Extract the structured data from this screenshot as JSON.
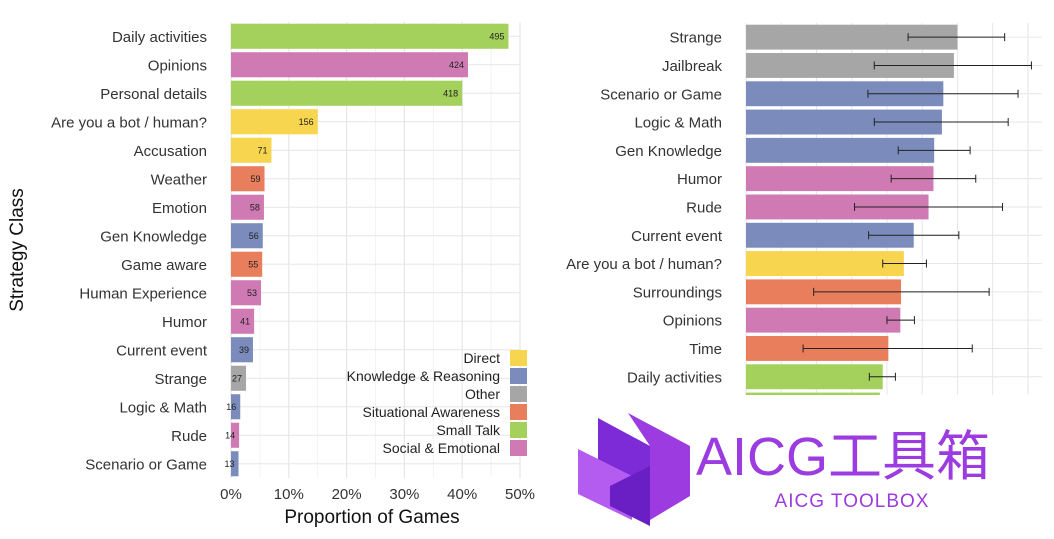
{
  "colors": {
    "Direct": "#f7d54f",
    "Knowledge & Reasoning": "#7b8cbc",
    "Other": "#a6a6a6",
    "Situational Awareness": "#e87e5c",
    "Small Talk": "#a3d15b",
    "Social & Emotional": "#d07ab4",
    "grid": "#e6e6e6",
    "text": "#333333",
    "watermark": "#9b3be0"
  },
  "chart_data": [
    {
      "type": "bar",
      "orientation": "horizontal",
      "ylabel": "Strategy Class",
      "xlabel": "Proportion of Games",
      "x_ticks": [
        "0%",
        "10%",
        "20%",
        "30%",
        "40%",
        "50%"
      ],
      "xlim": [
        0,
        0.5
      ],
      "legend": {
        "placement": "bottom-right",
        "entries": [
          "Direct",
          "Knowledge & Reasoning",
          "Other",
          "Situational Awareness",
          "Small Talk",
          "Social & Emotional"
        ]
      },
      "bars": [
        {
          "label": "Daily activities",
          "value": 0.48,
          "count": "495",
          "class": "Small Talk"
        },
        {
          "label": "Opinions",
          "value": 0.41,
          "count": "424",
          "class": "Social & Emotional"
        },
        {
          "label": "Personal details",
          "value": 0.4,
          "count": "418",
          "class": "Small Talk"
        },
        {
          "label": "Are you a bot / human?",
          "value": 0.15,
          "count": "156",
          "class": "Direct"
        },
        {
          "label": "Accusation",
          "value": 0.07,
          "count": "71",
          "class": "Direct"
        },
        {
          "label": "Weather",
          "value": 0.058,
          "count": "59",
          "class": "Situational Awareness"
        },
        {
          "label": "Emotion",
          "value": 0.057,
          "count": "58",
          "class": "Social & Emotional"
        },
        {
          "label": "Gen Knowledge",
          "value": 0.055,
          "count": "56",
          "class": "Knowledge & Reasoning"
        },
        {
          "label": "Game aware",
          "value": 0.054,
          "count": "55",
          "class": "Situational Awareness"
        },
        {
          "label": "Human Experience",
          "value": 0.052,
          "count": "53",
          "class": "Social & Emotional"
        },
        {
          "label": "Humor",
          "value": 0.04,
          "count": "41",
          "class": "Social & Emotional"
        },
        {
          "label": "Current event",
          "value": 0.038,
          "count": "39",
          "class": "Knowledge & Reasoning"
        },
        {
          "label": "Strange",
          "value": 0.026,
          "count": "27",
          "class": "Other"
        },
        {
          "label": "Logic & Math",
          "value": 0.016,
          "count": "16",
          "class": "Knowledge & Reasoning"
        },
        {
          "label": "Rude",
          "value": 0.014,
          "count": "14",
          "class": "Social & Emotional"
        },
        {
          "label": "Scenario or Game",
          "value": 0.013,
          "count": "13",
          "class": "Knowledge & Reasoning"
        }
      ]
    },
    {
      "type": "bar",
      "orientation": "horizontal",
      "error_bars": true,
      "xlim": [
        0,
        0.42
      ],
      "bars": [
        {
          "label": "Strange",
          "value": 0.3,
          "err_low": 0.23,
          "err_high": 0.367,
          "class": "Other"
        },
        {
          "label": "Jailbreak",
          "value": 0.295,
          "err_low": 0.182,
          "err_high": 0.405,
          "class": "Other"
        },
        {
          "label": "Scenario or Game",
          "value": 0.28,
          "err_low": 0.173,
          "err_high": 0.386,
          "class": "Knowledge & Reasoning"
        },
        {
          "label": "Logic & Math",
          "value": 0.278,
          "err_low": 0.182,
          "err_high": 0.372,
          "class": "Knowledge & Reasoning"
        },
        {
          "label": "Gen Knowledge",
          "value": 0.267,
          "err_low": 0.216,
          "err_high": 0.318,
          "class": "Knowledge & Reasoning"
        },
        {
          "label": "Humor",
          "value": 0.266,
          "err_low": 0.206,
          "err_high": 0.326,
          "class": "Social & Emotional"
        },
        {
          "label": "Rude",
          "value": 0.259,
          "err_low": 0.154,
          "err_high": 0.364,
          "class": "Social & Emotional"
        },
        {
          "label": "Current event",
          "value": 0.238,
          "err_low": 0.174,
          "err_high": 0.302,
          "class": "Knowledge & Reasoning"
        },
        {
          "label": "Are you a bot / human?",
          "value": 0.224,
          "err_low": 0.194,
          "err_high": 0.256,
          "class": "Direct"
        },
        {
          "label": "Surroundings",
          "value": 0.22,
          "err_low": 0.096,
          "err_high": 0.345,
          "class": "Situational Awareness"
        },
        {
          "label": "Opinions",
          "value": 0.219,
          "err_low": 0.2,
          "err_high": 0.239,
          "class": "Social & Emotional"
        },
        {
          "label": "Time",
          "value": 0.202,
          "err_low": 0.081,
          "err_high": 0.321,
          "class": "Situational Awareness"
        },
        {
          "label": "Daily activities",
          "value": 0.194,
          "err_low": 0.175,
          "err_high": 0.212,
          "class": "Small Talk"
        },
        {
          "label": "",
          "value": 0.19,
          "class": "Small Talk"
        }
      ]
    }
  ],
  "watermark": {
    "title": "AICG工具箱",
    "subtitle": "AICG TOOLBOX"
  }
}
